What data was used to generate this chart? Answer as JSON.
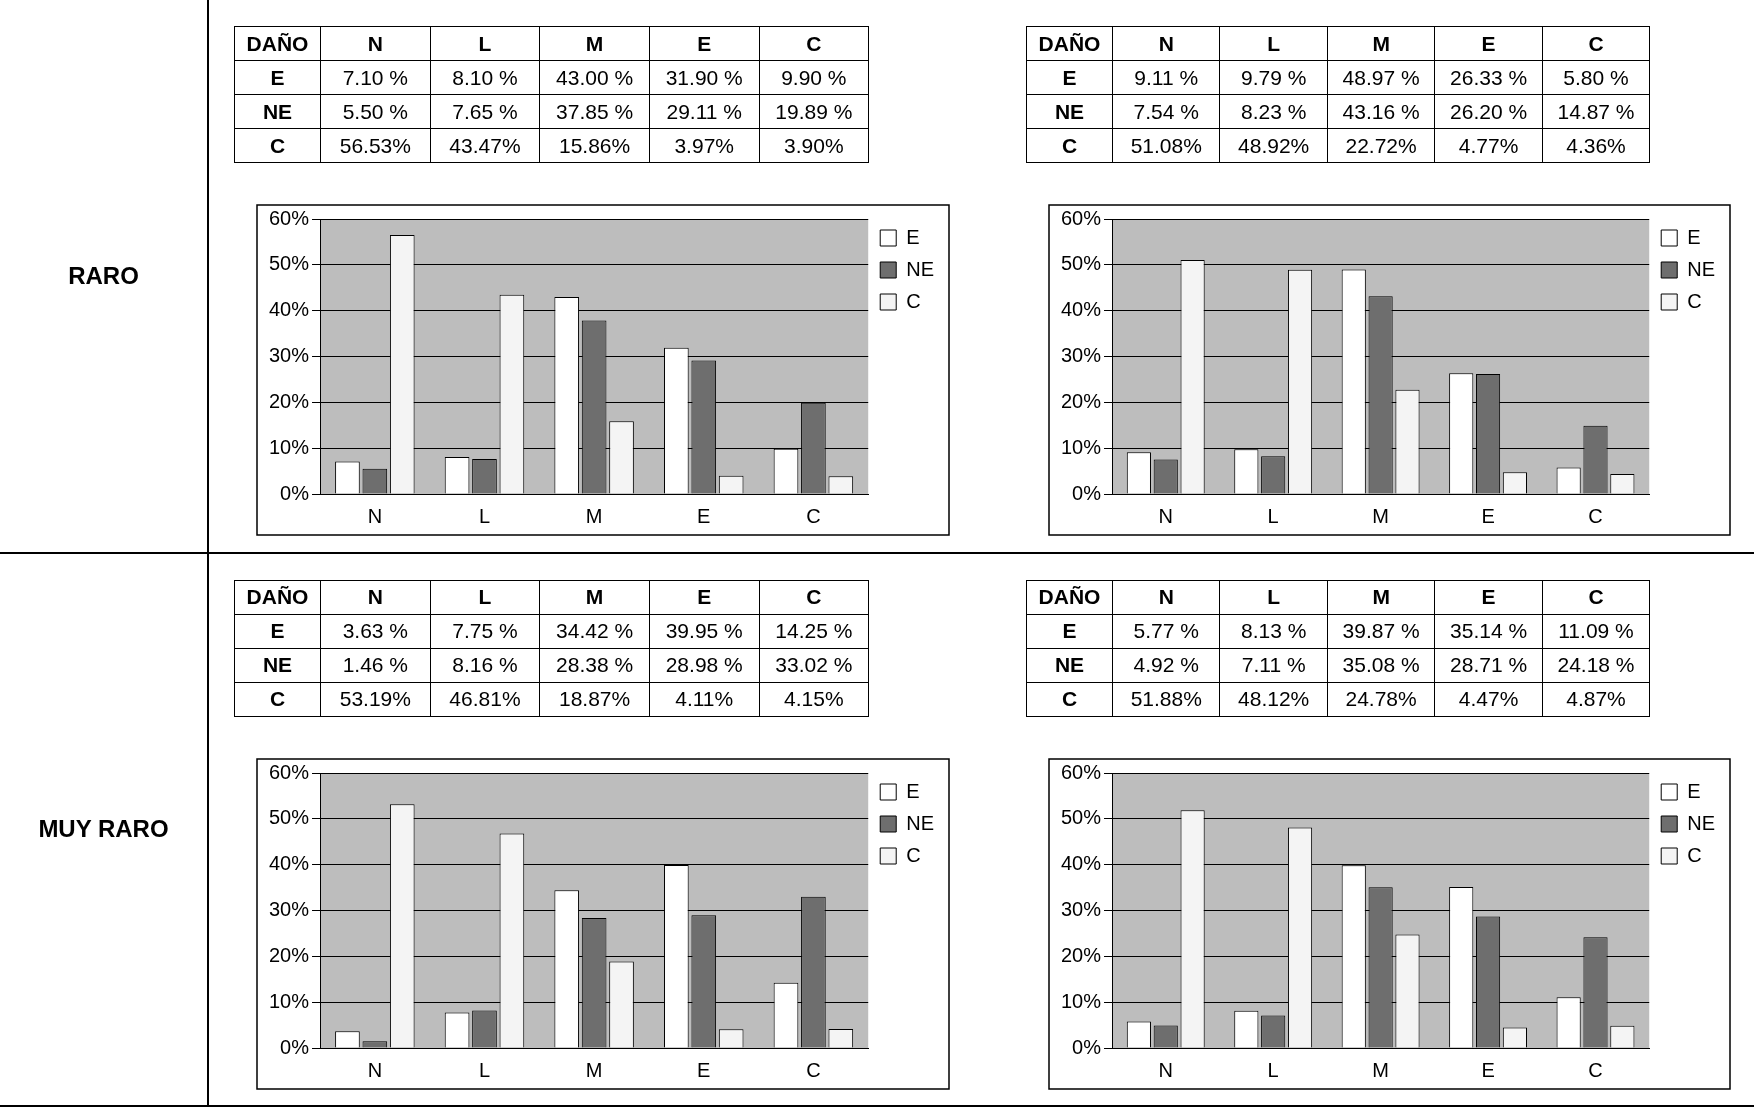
{
  "chart_data": [
    {
      "type": "bar",
      "categories": [
        "N",
        "L",
        "M",
        "E",
        "C"
      ],
      "ylim": [
        0,
        60
      ],
      "yticks": [
        {
          "value": 0,
          "label": "0%"
        },
        {
          "value": 10,
          "label": "10%"
        },
        {
          "value": 20,
          "label": "20%"
        },
        {
          "value": 30,
          "label": "30%"
        },
        {
          "value": 40,
          "label": "40%"
        },
        {
          "value": 50,
          "label": "50%"
        },
        {
          "value": 60,
          "label": "60%"
        }
      ],
      "grid": "y",
      "legend": "top right",
      "annotations": [
        "DAÑO",
        "RARO"
      ],
      "series": [
        {
          "name": "E",
          "color": "#ffffff",
          "values": [
            7.1,
            8.1,
            43.0,
            31.9,
            9.9
          ],
          "value_labels": [
            "7.10 %",
            "8.10 %",
            "43.00 %",
            "31.90 %",
            "9.90 %"
          ]
        },
        {
          "name": "NE",
          "color": "#6e6e6e",
          "values": [
            5.5,
            7.65,
            37.85,
            29.11,
            19.89
          ],
          "value_labels": [
            "5.50 %",
            "7.65 %",
            "37.85 %",
            "29.11 %",
            "19.89 %"
          ]
        },
        {
          "name": "C",
          "color": "#f4f4f4",
          "values": [
            56.53,
            43.47,
            15.86,
            3.97,
            3.9
          ],
          "value_labels": [
            "56.53%",
            "43.47%",
            "15.86%",
            "3.97%",
            "3.90%"
          ]
        }
      ]
    },
    {
      "type": "bar",
      "categories": [
        "N",
        "L",
        "M",
        "E",
        "C"
      ],
      "ylim": [
        0,
        60
      ],
      "yticks": [
        {
          "value": 0,
          "label": "0%"
        },
        {
          "value": 10,
          "label": "10%"
        },
        {
          "value": 20,
          "label": "20%"
        },
        {
          "value": 30,
          "label": "30%"
        },
        {
          "value": 40,
          "label": "40%"
        },
        {
          "value": 50,
          "label": "50%"
        },
        {
          "value": 60,
          "label": "60%"
        }
      ],
      "grid": "y",
      "legend": "top right",
      "annotations": [
        "DAÑO"
      ],
      "series": [
        {
          "name": "E",
          "color": "#ffffff",
          "values": [
            9.11,
            9.79,
            48.97,
            26.33,
            5.8
          ],
          "value_labels": [
            "9.11 %",
            "9.79 %",
            "48.97 %",
            "26.33 %",
            "5.80 %"
          ]
        },
        {
          "name": "NE",
          "color": "#6e6e6e",
          "values": [
            7.54,
            8.23,
            43.16,
            26.2,
            14.87
          ],
          "value_labels": [
            "7.54 %",
            "8.23 %",
            "43.16 %",
            "26.20 %",
            "14.87 %"
          ]
        },
        {
          "name": "C",
          "color": "#f4f4f4",
          "values": [
            51.08,
            48.92,
            22.72,
            4.77,
            4.36
          ],
          "value_labels": [
            "51.08%",
            "48.92%",
            "22.72%",
            "4.77%",
            "4.36%"
          ]
        }
      ]
    },
    {
      "type": "bar",
      "categories": [
        "N",
        "L",
        "M",
        "E",
        "C"
      ],
      "ylim": [
        0,
        60
      ],
      "yticks": [
        {
          "value": 0,
          "label": "0%"
        },
        {
          "value": 10,
          "label": "10%"
        },
        {
          "value": 20,
          "label": "20%"
        },
        {
          "value": 30,
          "label": "30%"
        },
        {
          "value": 40,
          "label": "40%"
        },
        {
          "value": 50,
          "label": "50%"
        },
        {
          "value": 60,
          "label": "60%"
        }
      ],
      "grid": "y",
      "legend": "top right",
      "annotations": [
        "DAÑO",
        "MUY RARO"
      ],
      "series": [
        {
          "name": "E",
          "color": "#ffffff",
          "values": [
            3.63,
            7.75,
            34.42,
            39.95,
            14.25
          ],
          "value_labels": [
            "3.63 %",
            "7.75 %",
            "34.42 %",
            "39.95 %",
            "14.25 %"
          ]
        },
        {
          "name": "NE",
          "color": "#6e6e6e",
          "values": [
            1.46,
            8.16,
            28.38,
            28.98,
            33.02
          ],
          "value_labels": [
            "1.46 %",
            "8.16 %",
            "28.38 %",
            "28.98 %",
            "33.02 %"
          ]
        },
        {
          "name": "C",
          "color": "#f4f4f4",
          "values": [
            53.19,
            46.81,
            18.87,
            4.11,
            4.15
          ],
          "value_labels": [
            "53.19%",
            "46.81%",
            "18.87%",
            "4.11%",
            "4.15%"
          ]
        }
      ]
    },
    {
      "type": "bar",
      "categories": [
        "N",
        "L",
        "M",
        "E",
        "C"
      ],
      "ylim": [
        0,
        60
      ],
      "yticks": [
        {
          "value": 0,
          "label": "0%"
        },
        {
          "value": 10,
          "label": "10%"
        },
        {
          "value": 20,
          "label": "20%"
        },
        {
          "value": 30,
          "label": "30%"
        },
        {
          "value": 40,
          "label": "40%"
        },
        {
          "value": 50,
          "label": "50%"
        },
        {
          "value": 60,
          "label": "60%"
        }
      ],
      "grid": "y",
      "legend": "top right",
      "annotations": [
        "DAÑO"
      ],
      "series": [
        {
          "name": "E",
          "color": "#ffffff",
          "values": [
            5.77,
            8.13,
            39.87,
            35.14,
            11.09
          ],
          "value_labels": [
            "5.77 %",
            "8.13 %",
            "39.87 %",
            "35.14 %",
            "11.09 %"
          ]
        },
        {
          "name": "NE",
          "color": "#6e6e6e",
          "values": [
            4.92,
            7.11,
            35.08,
            28.71,
            24.18
          ],
          "value_labels": [
            "4.92 %",
            "7.11 %",
            "35.08 %",
            "28.71 %",
            "24.18 %"
          ]
        },
        {
          "name": "C",
          "color": "#f4f4f4",
          "values": [
            51.88,
            48.12,
            24.78,
            4.47,
            4.87
          ],
          "value_labels": [
            "51.88%",
            "48.12%",
            "24.78%",
            "4.47%",
            "4.87%"
          ]
        }
      ]
    }
  ]
}
